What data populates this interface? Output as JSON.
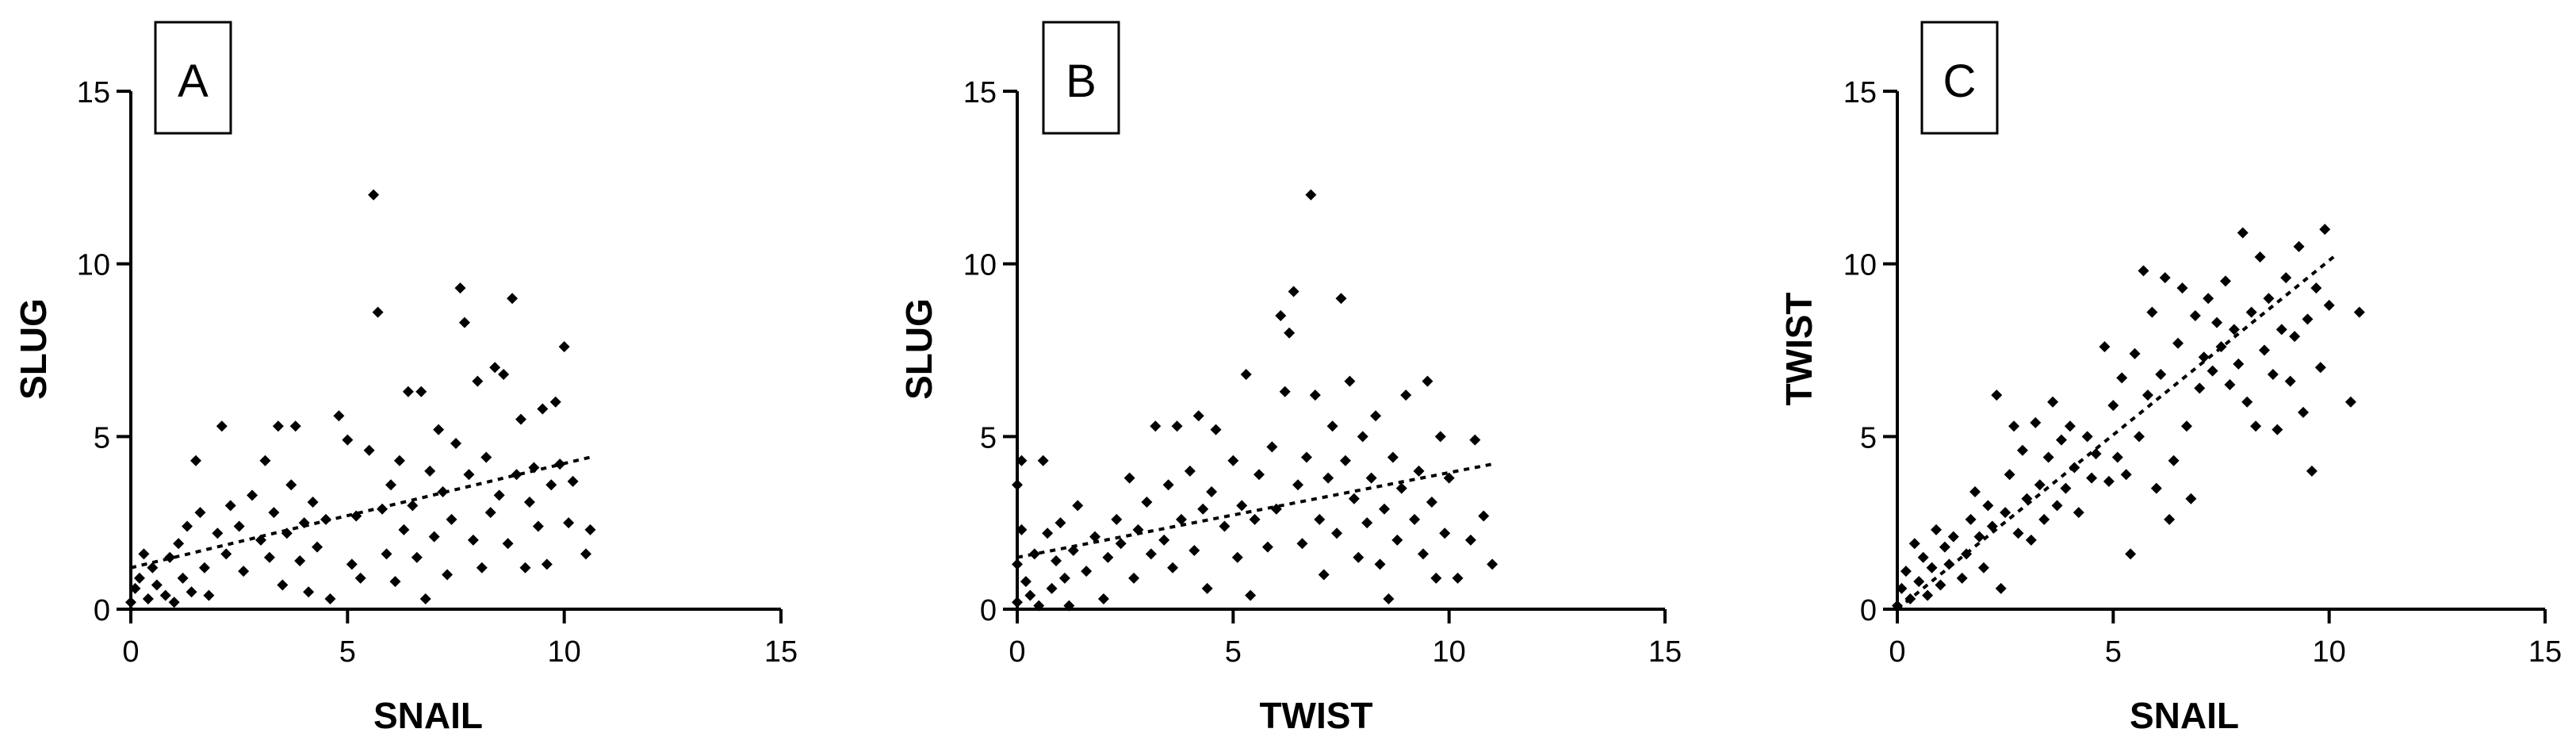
{
  "figure": {
    "point_color": "#000000",
    "axis_color": "#000000",
    "fit_line_color": "#000000",
    "marker": "diamond"
  },
  "chart_data": [
    {
      "type": "scatter",
      "panel_label": "A",
      "xlabel": "SNAIL",
      "ylabel": "SLUG",
      "xlim": [
        0,
        15
      ],
      "ylim": [
        0,
        15
      ],
      "xticks": [
        0,
        5,
        10,
        15
      ],
      "yticks": [
        0,
        5,
        10,
        15
      ],
      "grid": false,
      "trendline": {
        "style": "dotted",
        "x": [
          0,
          10.6
        ],
        "y": [
          1.2,
          4.4
        ]
      },
      "points": [
        [
          0.0,
          0.2
        ],
        [
          0.1,
          0.6
        ],
        [
          0.2,
          0.9
        ],
        [
          0.3,
          1.6
        ],
        [
          0.4,
          0.3
        ],
        [
          0.5,
          1.2
        ],
        [
          0.6,
          0.7
        ],
        [
          0.8,
          0.4
        ],
        [
          0.9,
          1.5
        ],
        [
          1.0,
          0.2
        ],
        [
          1.1,
          1.9
        ],
        [
          1.2,
          0.9
        ],
        [
          1.3,
          2.4
        ],
        [
          1.4,
          0.5
        ],
        [
          1.5,
          4.3
        ],
        [
          1.6,
          2.8
        ],
        [
          1.7,
          1.2
        ],
        [
          1.8,
          0.4
        ],
        [
          2.0,
          2.2
        ],
        [
          2.1,
          5.3
        ],
        [
          2.2,
          1.6
        ],
        [
          2.3,
          3.0
        ],
        [
          2.5,
          2.4
        ],
        [
          2.6,
          1.1
        ],
        [
          2.8,
          3.3
        ],
        [
          3.0,
          2.0
        ],
        [
          3.1,
          4.3
        ],
        [
          3.2,
          1.5
        ],
        [
          3.3,
          2.8
        ],
        [
          3.4,
          5.3
        ],
        [
          3.5,
          0.7
        ],
        [
          3.6,
          2.2
        ],
        [
          3.7,
          3.6
        ],
        [
          3.8,
          5.3
        ],
        [
          3.9,
          1.4
        ],
        [
          4.0,
          2.5
        ],
        [
          4.1,
          0.5
        ],
        [
          4.2,
          3.1
        ],
        [
          4.3,
          1.8
        ],
        [
          4.5,
          2.6
        ],
        [
          4.6,
          0.3
        ],
        [
          4.8,
          5.6
        ],
        [
          5.0,
          4.9
        ],
        [
          5.1,
          1.3
        ],
        [
          5.2,
          2.7
        ],
        [
          5.3,
          0.9
        ],
        [
          5.5,
          4.6
        ],
        [
          5.6,
          12.0
        ],
        [
          5.7,
          8.6
        ],
        [
          5.8,
          2.9
        ],
        [
          5.9,
          1.6
        ],
        [
          6.0,
          3.6
        ],
        [
          6.1,
          0.8
        ],
        [
          6.2,
          4.3
        ],
        [
          6.3,
          2.3
        ],
        [
          6.4,
          6.3
        ],
        [
          6.5,
          3.0
        ],
        [
          6.6,
          1.5
        ],
        [
          6.7,
          6.3
        ],
        [
          6.8,
          0.3
        ],
        [
          6.9,
          4.0
        ],
        [
          7.0,
          2.1
        ],
        [
          7.1,
          5.2
        ],
        [
          7.2,
          3.4
        ],
        [
          7.3,
          1.0
        ],
        [
          7.4,
          2.6
        ],
        [
          7.5,
          4.8
        ],
        [
          7.6,
          9.3
        ],
        [
          7.7,
          8.3
        ],
        [
          7.8,
          3.9
        ],
        [
          7.9,
          2.0
        ],
        [
          8.0,
          6.6
        ],
        [
          8.1,
          1.2
        ],
        [
          8.2,
          4.4
        ],
        [
          8.3,
          2.8
        ],
        [
          8.4,
          7.0
        ],
        [
          8.5,
          3.3
        ],
        [
          8.6,
          6.8
        ],
        [
          8.7,
          1.9
        ],
        [
          8.8,
          9.0
        ],
        [
          8.9,
          3.9
        ],
        [
          9.0,
          5.5
        ],
        [
          9.1,
          1.2
        ],
        [
          9.2,
          3.1
        ],
        [
          9.3,
          4.1
        ],
        [
          9.4,
          2.4
        ],
        [
          9.5,
          5.8
        ],
        [
          9.6,
          1.3
        ],
        [
          9.7,
          3.6
        ],
        [
          9.8,
          6.0
        ],
        [
          9.9,
          4.2
        ],
        [
          10.0,
          7.6
        ],
        [
          10.1,
          2.5
        ],
        [
          10.2,
          3.7
        ],
        [
          10.5,
          1.6
        ],
        [
          10.6,
          2.3
        ]
      ]
    },
    {
      "type": "scatter",
      "panel_label": "B",
      "xlabel": "TWIST",
      "ylabel": "SLUG",
      "xlim": [
        0,
        15
      ],
      "ylim": [
        0,
        15
      ],
      "xticks": [
        0,
        5,
        10,
        15
      ],
      "yticks": [
        0,
        5,
        10,
        15
      ],
      "grid": false,
      "trendline": {
        "style": "dotted",
        "x": [
          0,
          11
        ],
        "y": [
          1.5,
          4.2
        ]
      },
      "points": [
        [
          0.0,
          0.2
        ],
        [
          0.0,
          1.3
        ],
        [
          0.0,
          3.6
        ],
        [
          0.1,
          2.3
        ],
        [
          0.1,
          4.3
        ],
        [
          0.2,
          0.8
        ],
        [
          0.3,
          0.4
        ],
        [
          0.4,
          1.6
        ],
        [
          0.5,
          0.1
        ],
        [
          0.6,
          4.3
        ],
        [
          0.7,
          2.2
        ],
        [
          0.8,
          0.6
        ],
        [
          0.9,
          1.4
        ],
        [
          1.0,
          2.5
        ],
        [
          1.1,
          0.9
        ],
        [
          1.2,
          0.1
        ],
        [
          1.3,
          1.7
        ],
        [
          1.4,
          3.0
        ],
        [
          1.6,
          1.1
        ],
        [
          1.8,
          2.1
        ],
        [
          2.0,
          0.3
        ],
        [
          2.1,
          1.5
        ],
        [
          2.3,
          2.6
        ],
        [
          2.4,
          1.9
        ],
        [
          2.6,
          3.8
        ],
        [
          2.7,
          0.9
        ],
        [
          2.8,
          2.3
        ],
        [
          3.0,
          3.1
        ],
        [
          3.1,
          1.6
        ],
        [
          3.2,
          5.3
        ],
        [
          3.4,
          2.0
        ],
        [
          3.5,
          3.6
        ],
        [
          3.6,
          1.2
        ],
        [
          3.7,
          5.3
        ],
        [
          3.8,
          2.6
        ],
        [
          4.0,
          4.0
        ],
        [
          4.1,
          1.7
        ],
        [
          4.2,
          5.6
        ],
        [
          4.3,
          2.9
        ],
        [
          4.4,
          0.6
        ],
        [
          4.5,
          3.4
        ],
        [
          4.6,
          5.2
        ],
        [
          4.8,
          2.4
        ],
        [
          5.0,
          4.3
        ],
        [
          5.1,
          1.5
        ],
        [
          5.2,
          3.0
        ],
        [
          5.3,
          6.8
        ],
        [
          5.4,
          0.4
        ],
        [
          5.5,
          2.6
        ],
        [
          5.6,
          3.9
        ],
        [
          5.8,
          1.8
        ],
        [
          5.9,
          4.7
        ],
        [
          6.0,
          2.9
        ],
        [
          6.1,
          8.5
        ],
        [
          6.2,
          6.3
        ],
        [
          6.3,
          8.0
        ],
        [
          6.4,
          9.2
        ],
        [
          6.5,
          3.6
        ],
        [
          6.6,
          1.9
        ],
        [
          6.7,
          4.4
        ],
        [
          6.8,
          12.0
        ],
        [
          6.9,
          6.2
        ],
        [
          7.0,
          2.6
        ],
        [
          7.1,
          1.0
        ],
        [
          7.2,
          3.8
        ],
        [
          7.3,
          5.3
        ],
        [
          7.4,
          2.2
        ],
        [
          7.5,
          9.0
        ],
        [
          7.6,
          4.3
        ],
        [
          7.7,
          6.6
        ],
        [
          7.8,
          3.2
        ],
        [
          7.9,
          1.5
        ],
        [
          8.0,
          5.0
        ],
        [
          8.1,
          2.5
        ],
        [
          8.2,
          3.8
        ],
        [
          8.3,
          5.6
        ],
        [
          8.4,
          1.3
        ],
        [
          8.5,
          2.9
        ],
        [
          8.6,
          0.3
        ],
        [
          8.7,
          4.4
        ],
        [
          8.8,
          2.0
        ],
        [
          8.9,
          3.5
        ],
        [
          9.0,
          6.2
        ],
        [
          9.2,
          2.6
        ],
        [
          9.3,
          4.0
        ],
        [
          9.4,
          1.6
        ],
        [
          9.5,
          6.6
        ],
        [
          9.6,
          3.1
        ],
        [
          9.7,
          0.9
        ],
        [
          9.8,
          5.0
        ],
        [
          9.9,
          2.2
        ],
        [
          10.0,
          3.8
        ],
        [
          10.2,
          0.9
        ],
        [
          10.5,
          2.0
        ],
        [
          10.6,
          4.9
        ],
        [
          10.8,
          2.7
        ],
        [
          11.0,
          1.3
        ]
      ]
    },
    {
      "type": "scatter",
      "panel_label": "C",
      "xlabel": "SNAIL",
      "ylabel": "TWIST",
      "xlim": [
        0,
        15
      ],
      "ylim": [
        0,
        15
      ],
      "xticks": [
        0,
        5,
        10,
        15
      ],
      "yticks": [
        0,
        5,
        10,
        15
      ],
      "grid": false,
      "trendline": {
        "style": "dotted",
        "x": [
          0,
          10.2
        ],
        "y": [
          0.0,
          10.3
        ]
      },
      "points": [
        [
          0.0,
          0.1
        ],
        [
          0.1,
          0.6
        ],
        [
          0.2,
          1.1
        ],
        [
          0.3,
          0.3
        ],
        [
          0.4,
          1.9
        ],
        [
          0.5,
          0.8
        ],
        [
          0.6,
          1.5
        ],
        [
          0.7,
          0.4
        ],
        [
          0.8,
          1.2
        ],
        [
          0.9,
          2.3
        ],
        [
          1.0,
          0.7
        ],
        [
          1.1,
          1.8
        ],
        [
          1.2,
          1.3
        ],
        [
          1.3,
          2.1
        ],
        [
          1.5,
          0.9
        ],
        [
          1.6,
          1.6
        ],
        [
          1.7,
          2.6
        ],
        [
          1.8,
          3.4
        ],
        [
          1.9,
          2.1
        ],
        [
          2.0,
          1.2
        ],
        [
          2.1,
          3.0
        ],
        [
          2.2,
          2.4
        ],
        [
          2.3,
          6.2
        ],
        [
          2.4,
          0.6
        ],
        [
          2.5,
          2.8
        ],
        [
          2.6,
          3.9
        ],
        [
          2.7,
          5.3
        ],
        [
          2.8,
          2.2
        ],
        [
          2.9,
          4.6
        ],
        [
          3.0,
          3.2
        ],
        [
          3.1,
          2.0
        ],
        [
          3.2,
          5.4
        ],
        [
          3.3,
          3.6
        ],
        [
          3.4,
          2.6
        ],
        [
          3.5,
          4.4
        ],
        [
          3.6,
          6.0
        ],
        [
          3.7,
          3.0
        ],
        [
          3.8,
          4.9
        ],
        [
          3.9,
          3.5
        ],
        [
          4.0,
          5.3
        ],
        [
          4.1,
          4.1
        ],
        [
          4.2,
          2.8
        ],
        [
          4.4,
          5.0
        ],
        [
          4.5,
          3.8
        ],
        [
          4.6,
          4.5
        ],
        [
          4.8,
          7.6
        ],
        [
          4.9,
          3.7
        ],
        [
          5.0,
          5.9
        ],
        [
          5.1,
          4.4
        ],
        [
          5.2,
          6.7
        ],
        [
          5.3,
          3.9
        ],
        [
          5.4,
          1.6
        ],
        [
          5.5,
          7.4
        ],
        [
          5.6,
          5.0
        ],
        [
          5.7,
          9.8
        ],
        [
          5.8,
          6.2
        ],
        [
          5.9,
          8.6
        ],
        [
          6.0,
          3.5
        ],
        [
          6.1,
          6.8
        ],
        [
          6.2,
          9.6
        ],
        [
          6.3,
          2.6
        ],
        [
          6.4,
          4.3
        ],
        [
          6.5,
          7.7
        ],
        [
          6.6,
          9.3
        ],
        [
          6.7,
          5.3
        ],
        [
          6.8,
          3.2
        ],
        [
          6.9,
          8.5
        ],
        [
          7.0,
          6.4
        ],
        [
          7.1,
          7.3
        ],
        [
          7.2,
          9.0
        ],
        [
          7.3,
          6.9
        ],
        [
          7.4,
          8.3
        ],
        [
          7.5,
          7.6
        ],
        [
          7.6,
          9.5
        ],
        [
          7.7,
          6.5
        ],
        [
          7.8,
          8.1
        ],
        [
          7.9,
          7.1
        ],
        [
          8.0,
          10.9
        ],
        [
          8.1,
          6.0
        ],
        [
          8.2,
          8.6
        ],
        [
          8.3,
          5.3
        ],
        [
          8.4,
          10.2
        ],
        [
          8.5,
          7.5
        ],
        [
          8.6,
          9.0
        ],
        [
          8.7,
          6.8
        ],
        [
          8.8,
          5.2
        ],
        [
          8.9,
          8.1
        ],
        [
          9.0,
          9.6
        ],
        [
          9.1,
          6.6
        ],
        [
          9.2,
          7.9
        ],
        [
          9.3,
          10.5
        ],
        [
          9.4,
          5.7
        ],
        [
          9.5,
          8.4
        ],
        [
          9.6,
          4.0
        ],
        [
          9.7,
          9.3
        ],
        [
          9.8,
          7.0
        ],
        [
          9.9,
          11.0
        ],
        [
          10.0,
          8.8
        ],
        [
          10.5,
          6.0
        ],
        [
          10.7,
          8.6
        ]
      ]
    }
  ]
}
